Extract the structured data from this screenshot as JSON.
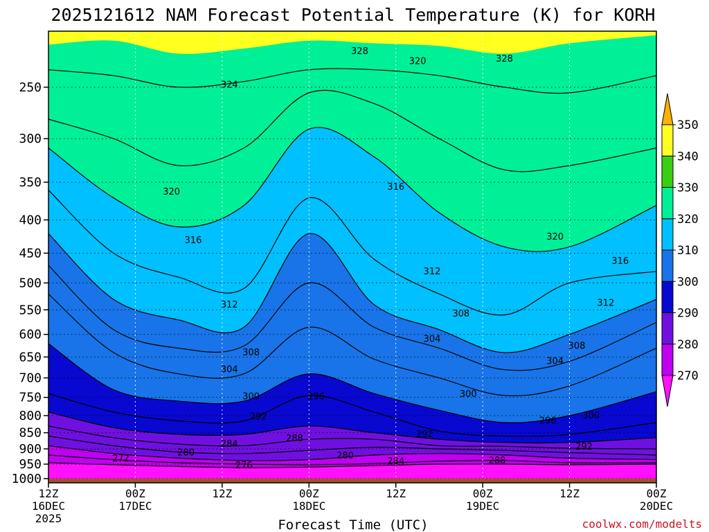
{
  "chart_data": {
    "type": "contour",
    "title": "2025121612 NAM Forecast Potential Temperature (K) for KORH",
    "xlabel": "Forecast Time (UTC)",
    "ylabel": "",
    "credit": "coolwx.com/modelts",
    "y_axis": {
      "scale": "log",
      "inverted": true,
      "range": [
        1015,
        205
      ],
      "ticks": [
        250,
        300,
        350,
        400,
        450,
        500,
        550,
        600,
        650,
        700,
        750,
        800,
        850,
        900,
        950,
        1000
      ],
      "tick_labels": [
        "250",
        "300",
        "350",
        "400",
        "450",
        "500",
        "550",
        "600",
        "650",
        "700",
        "750",
        "800",
        "850",
        "900",
        "950",
        "1000"
      ]
    },
    "x_axis": {
      "range_hours": [
        0,
        84
      ],
      "ticks": [
        {
          "hour": 0,
          "line1": "12Z",
          "line2": "16DEC",
          "line3": "2025"
        },
        {
          "hour": 12,
          "line1": "00Z",
          "line2": "17DEC",
          "line3": ""
        },
        {
          "hour": 24,
          "line1": "12Z",
          "line2": "",
          "line3": ""
        },
        {
          "hour": 36,
          "line1": "00Z",
          "line2": "18DEC",
          "line3": ""
        },
        {
          "hour": 48,
          "line1": "12Z",
          "line2": "",
          "line3": ""
        },
        {
          "hour": 60,
          "line1": "00Z",
          "line2": "19DEC",
          "line3": ""
        },
        {
          "hour": 72,
          "line1": "12Z",
          "line2": "",
          "line3": ""
        },
        {
          "hour": 84,
          "line1": "00Z",
          "line2": "20DEC",
          "line3": ""
        }
      ]
    },
    "grid": true,
    "colorbar": {
      "placement": "right",
      "bands": [
        {
          "min": 260,
          "max": 270,
          "color": "#ff10ff"
        },
        {
          "min": 270,
          "max": 280,
          "color": "#c000f0"
        },
        {
          "min": 280,
          "max": 290,
          "color": "#7010e0"
        },
        {
          "min": 290,
          "max": 300,
          "color": "#0808d0"
        },
        {
          "min": 300,
          "max": 310,
          "color": "#1874e8"
        },
        {
          "min": 310,
          "max": 320,
          "color": "#00c0ff"
        },
        {
          "min": 320,
          "max": 330,
          "color": "#00f098"
        },
        {
          "min": 330,
          "max": 340,
          "color": "#38d010"
        },
        {
          "min": 340,
          "max": 350,
          "color": "#ffff20"
        },
        {
          "min": 350,
          "max": 360,
          "color": "#ffb000"
        }
      ],
      "labels": [
        "270",
        "280",
        "290",
        "300",
        "310",
        "320",
        "330",
        "340",
        "350"
      ]
    },
    "ground_color": "#a0522d",
    "isentropes": [
      {
        "theta": 272,
        "p": [
          945,
          952,
          958,
          962,
          960,
          955,
          950,
          950,
          952,
          950
        ]
      },
      {
        "theta": 276,
        "p": [
          920,
          935,
          945,
          950,
          952,
          948,
          940,
          938,
          945,
          945
        ]
      },
      {
        "theta": 280,
        "p": [
          890,
          915,
          930,
          938,
          935,
          920,
          915,
          920,
          930,
          935
        ]
      },
      {
        "theta": 284,
        "p": [
          860,
          890,
          910,
          915,
          905,
          895,
          900,
          905,
          912,
          920
        ]
      },
      {
        "theta": 288,
        "p": [
          830,
          865,
          885,
          890,
          870,
          870,
          890,
          892,
          898,
          900
        ]
      },
      {
        "theta": 292,
        "p": [
          790,
          835,
          855,
          855,
          830,
          850,
          870,
          880,
          880,
          865
        ]
      },
      {
        "theta": 296,
        "p": [
          740,
          790,
          815,
          815,
          745,
          790,
          845,
          860,
          855,
          820
        ]
      },
      {
        "theta": 300,
        "p": [
          620,
          730,
          760,
          760,
          690,
          740,
          785,
          820,
          800,
          735
        ]
      },
      {
        "theta": 304,
        "p": [
          520,
          640,
          690,
          690,
          585,
          655,
          700,
          745,
          720,
          630
        ]
      },
      {
        "theta": 308,
        "p": [
          470,
          590,
          630,
          625,
          500,
          585,
          630,
          680,
          660,
          575
        ]
      },
      {
        "theta": 312,
        "p": [
          420,
          530,
          570,
          585,
          420,
          540,
          590,
          640,
          600,
          530
        ]
      },
      {
        "theta": 316,
        "p": [
          360,
          450,
          490,
          510,
          370,
          460,
          520,
          560,
          500,
          480
        ]
      },
      {
        "theta": 320,
        "p": [
          310,
          370,
          410,
          380,
          290,
          320,
          390,
          440,
          440,
          380
        ]
      },
      {
        "theta": 324,
        "p": [
          280,
          300,
          330,
          310,
          255,
          265,
          300,
          335,
          330,
          310
        ]
      },
      {
        "theta": 328,
        "p": [
          235,
          240,
          250,
          245,
          235,
          235,
          240,
          250,
          255,
          240
        ]
      }
    ],
    "isentrope_hours": [
      0,
      9,
      18,
      27,
      36,
      45,
      54,
      63,
      72,
      84
    ],
    "contour_labels": [
      {
        "text": "328",
        "hour": 43,
        "p": 220
      },
      {
        "text": "328",
        "hour": 63,
        "p": 226
      },
      {
        "text": "324",
        "hour": 25,
        "p": 248
      },
      {
        "text": "320",
        "hour": 51,
        "p": 228
      },
      {
        "text": "320",
        "hour": 17,
        "p": 362
      },
      {
        "text": "316",
        "hour": 48,
        "p": 356
      },
      {
        "text": "316",
        "hour": 20,
        "p": 430
      },
      {
        "text": "320",
        "hour": 70,
        "p": 425
      },
      {
        "text": "316",
        "hour": 79,
        "p": 463
      },
      {
        "text": "312",
        "hour": 53,
        "p": 480
      },
      {
        "text": "312",
        "hour": 25,
        "p": 540
      },
      {
        "text": "312",
        "hour": 77,
        "p": 537
      },
      {
        "text": "308",
        "hour": 57,
        "p": 558
      },
      {
        "text": "304",
        "hour": 53,
        "p": 610
      },
      {
        "text": "308",
        "hour": 28,
        "p": 640
      },
      {
        "text": "308",
        "hour": 73,
        "p": 625
      },
      {
        "text": "304",
        "hour": 25,
        "p": 680
      },
      {
        "text": "304",
        "hour": 70,
        "p": 660
      },
      {
        "text": "300",
        "hour": 28,
        "p": 748
      },
      {
        "text": "296",
        "hour": 37,
        "p": 748
      },
      {
        "text": "300",
        "hour": 58,
        "p": 741
      },
      {
        "text": "292",
        "hour": 29,
        "p": 803
      },
      {
        "text": "296",
        "hour": 69,
        "p": 815
      },
      {
        "text": "300",
        "hour": 75,
        "p": 800
      },
      {
        "text": "284",
        "hour": 25,
        "p": 885
      },
      {
        "text": "288",
        "hour": 34,
        "p": 868
      },
      {
        "text": "292",
        "hour": 52,
        "p": 855
      },
      {
        "text": "292",
        "hour": 74,
        "p": 893
      },
      {
        "text": "280",
        "hour": 19,
        "p": 912
      },
      {
        "text": "280",
        "hour": 41,
        "p": 922
      },
      {
        "text": "284",
        "hour": 48,
        "p": 941
      },
      {
        "text": "288",
        "hour": 62,
        "p": 938
      },
      {
        "text": "272",
        "hour": 10,
        "p": 932
      },
      {
        "text": "276",
        "hour": 27,
        "p": 955
      }
    ]
  }
}
